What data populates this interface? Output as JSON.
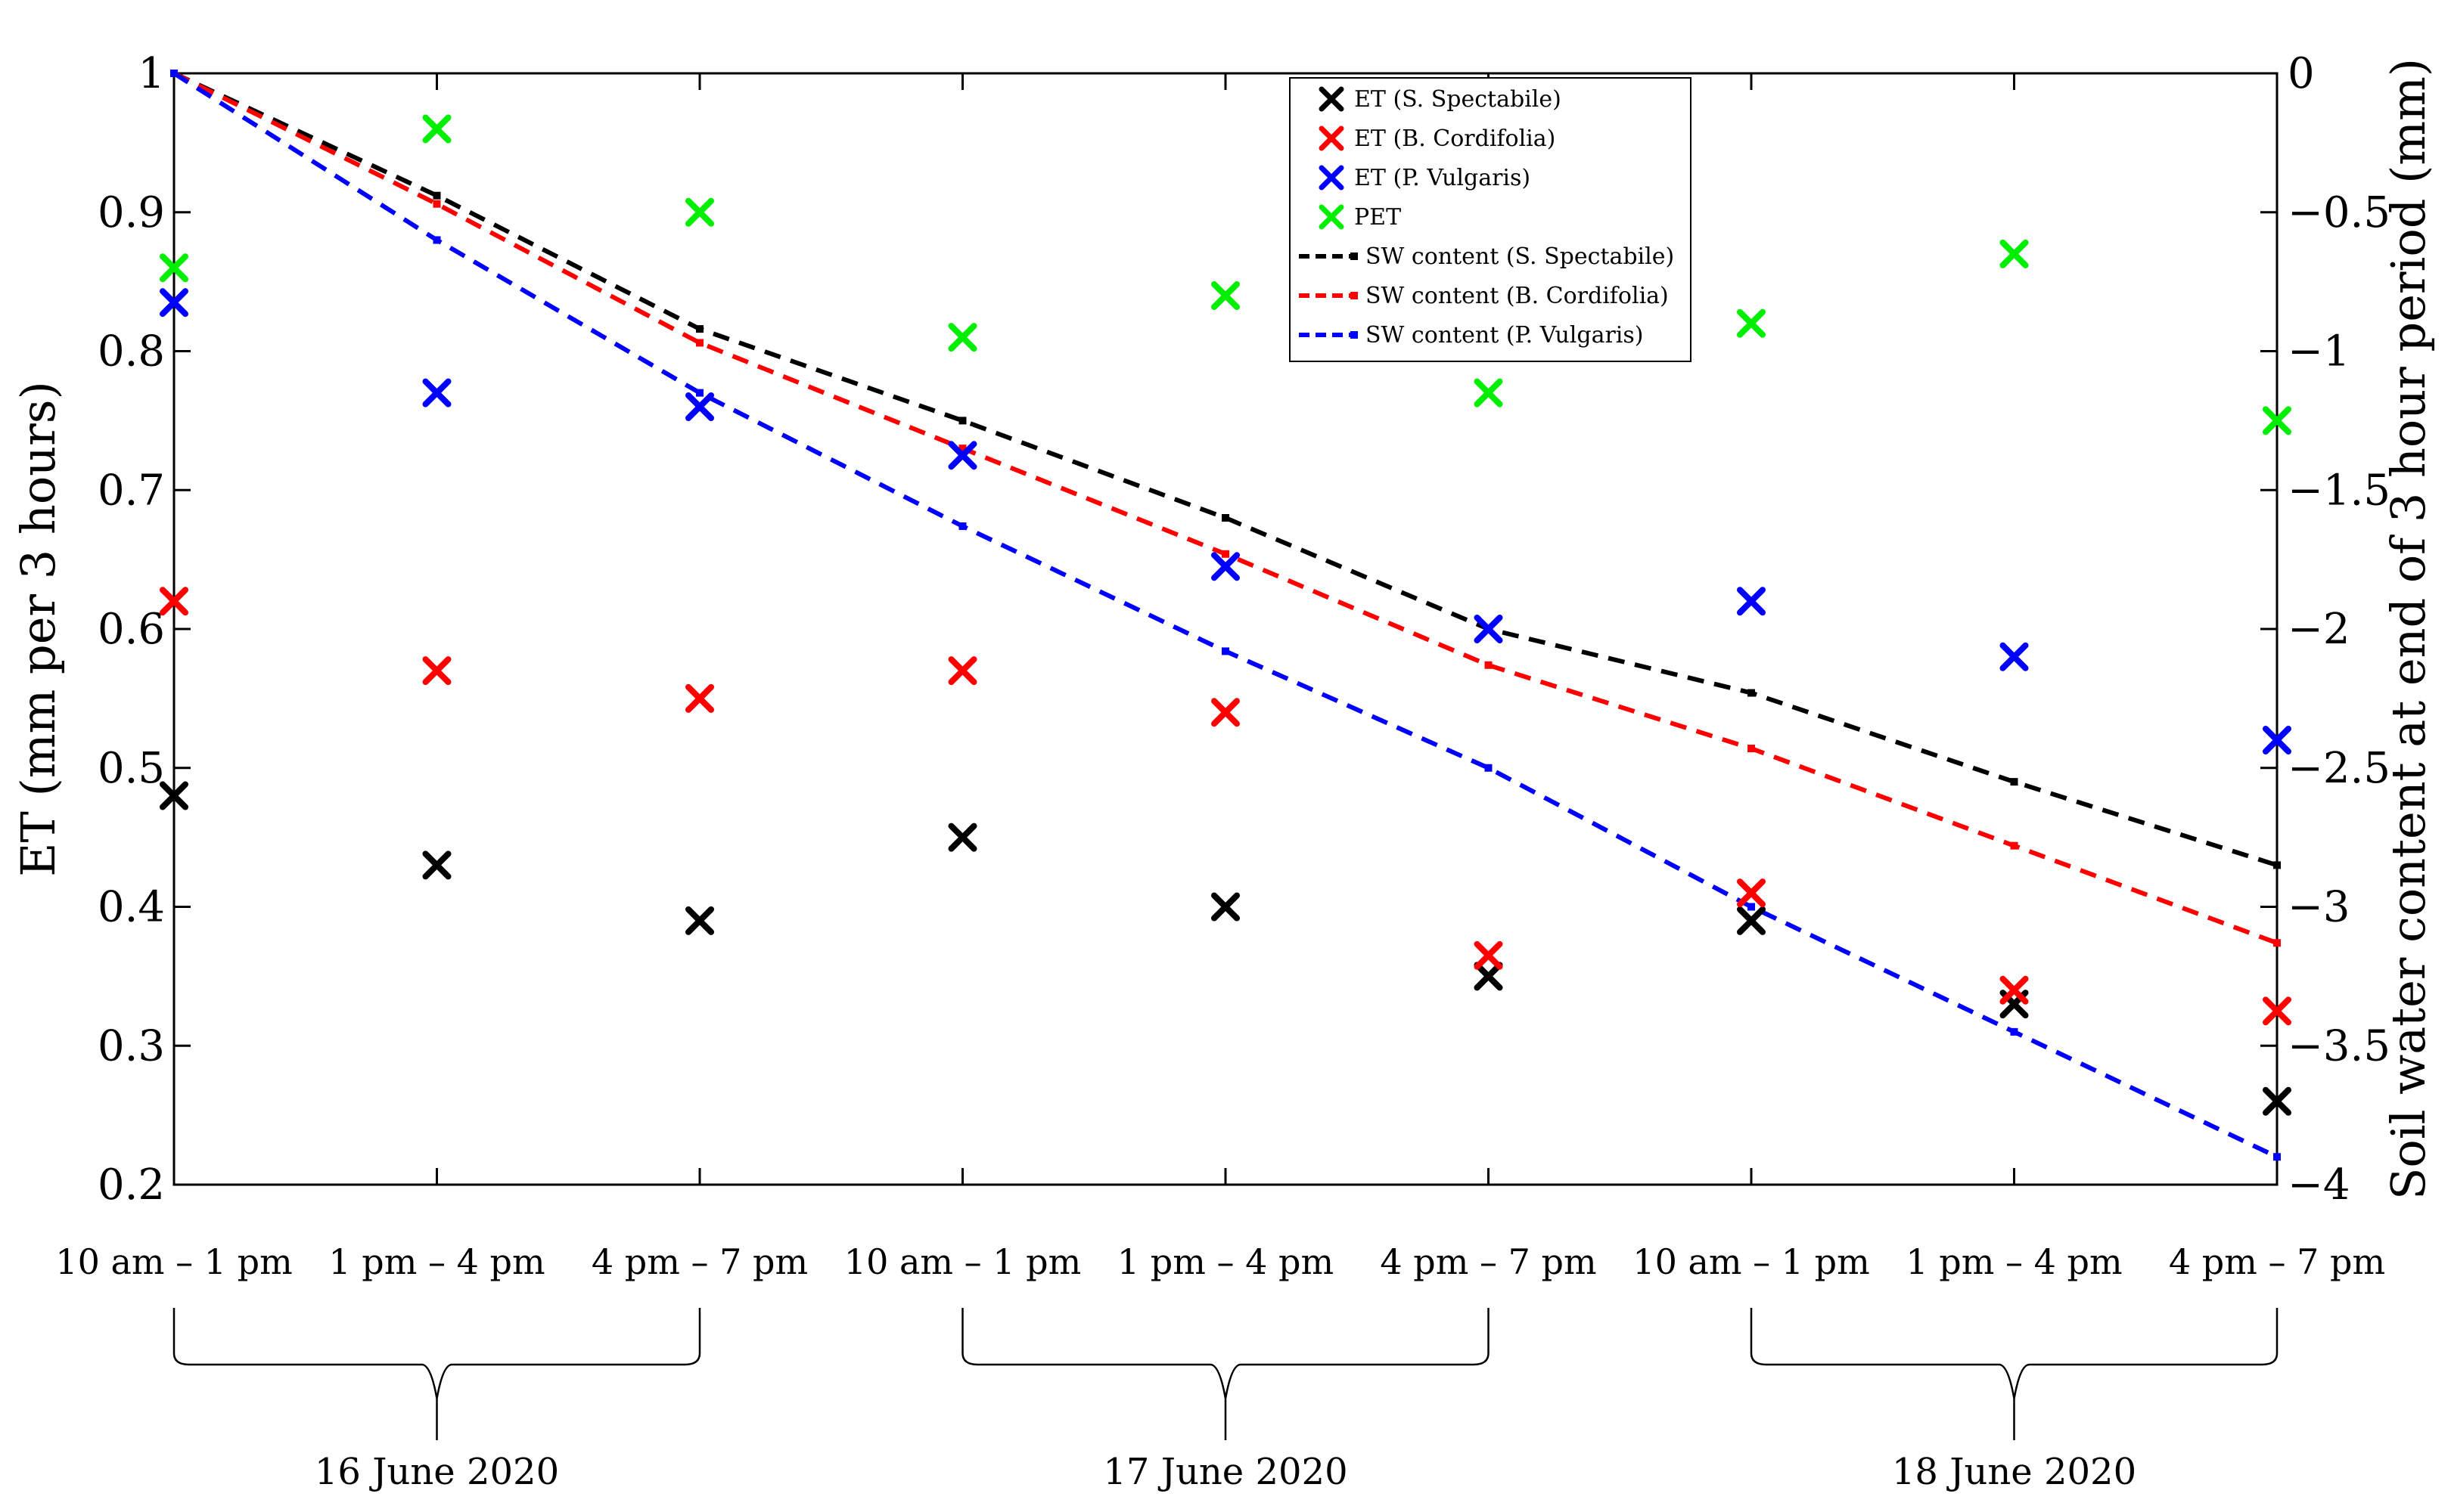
{
  "chart_data": {
    "type": "scatter",
    "categories": [
      "10 am – 1 pm",
      "1 pm – 4 pm",
      "4 pm – 7 pm",
      "10 am – 1 pm",
      "1 pm – 4 pm",
      "4 pm – 7 pm",
      "10 am – 1 pm",
      "1 pm – 4 pm",
      "4 pm – 7 pm"
    ],
    "groups": [
      {
        "label": "16 June 2020",
        "from": 0,
        "to": 2
      },
      {
        "label": "17 June 2020",
        "from": 3,
        "to": 5
      },
      {
        "label": "18 June 2020",
        "from": 6,
        "to": 8
      }
    ],
    "ylabel_left": "ET (mm per 3 hours)",
    "ylabel_right": "Soil water content at end of 3 hour period (mm)",
    "ylim_left": [
      0.2,
      1
    ],
    "ylim_right": [
      -4,
      0
    ],
    "yticks_left": [
      "0.2",
      "0.3",
      "0.4",
      "0.5",
      "0.6",
      "0.7",
      "0.8",
      "0.9",
      "1"
    ],
    "yticks_right": [
      "−4",
      "−3.5",
      "−3",
      "−2.5",
      "−2",
      "−1.5",
      "−1",
      "−0.5",
      "0"
    ],
    "grid": false,
    "legend_position": "top-center",
    "scatter_series": [
      {
        "name": "ET (S. Spectabile)",
        "color": "#000000",
        "values": [
          0.48,
          0.43,
          0.39,
          0.45,
          0.4,
          0.35,
          0.39,
          0.33,
          0.26
        ]
      },
      {
        "name": "ET (B. Cordifolia)",
        "color": "#ff0000",
        "values": [
          0.62,
          0.57,
          0.55,
          0.57,
          0.54,
          0.365,
          0.41,
          0.34,
          0.325
        ]
      },
      {
        "name": "ET (P. Vulgaris)",
        "color": "#0000ff",
        "values": [
          0.835,
          0.77,
          0.76,
          0.725,
          0.645,
          0.6,
          0.62,
          0.58,
          0.52
        ]
      },
      {
        "name": "PET",
        "color": "#00ee00",
        "values": [
          0.86,
          0.96,
          0.9,
          0.81,
          0.84,
          0.77,
          0.82,
          0.87,
          0.75
        ]
      }
    ],
    "line_series": [
      {
        "name": "SW content (S. Spectabile)",
        "color": "#000000",
        "values": [
          0,
          -0.44,
          -0.92,
          -1.25,
          -1.6,
          -2.0,
          -2.23,
          -2.55,
          -2.85
        ]
      },
      {
        "name": "SW content (B. Cordifolia)",
        "color": "#ff0000",
        "values": [
          0,
          -0.47,
          -0.97,
          -1.35,
          -1.73,
          -2.13,
          -2.43,
          -2.78,
          -3.13
        ]
      },
      {
        "name": "SW content (P. Vulgaris)",
        "color": "#0000ff",
        "values": [
          0,
          -0.6,
          -1.15,
          -1.63,
          -2.08,
          -2.5,
          -3.0,
          -3.45,
          -3.9
        ]
      }
    ]
  }
}
